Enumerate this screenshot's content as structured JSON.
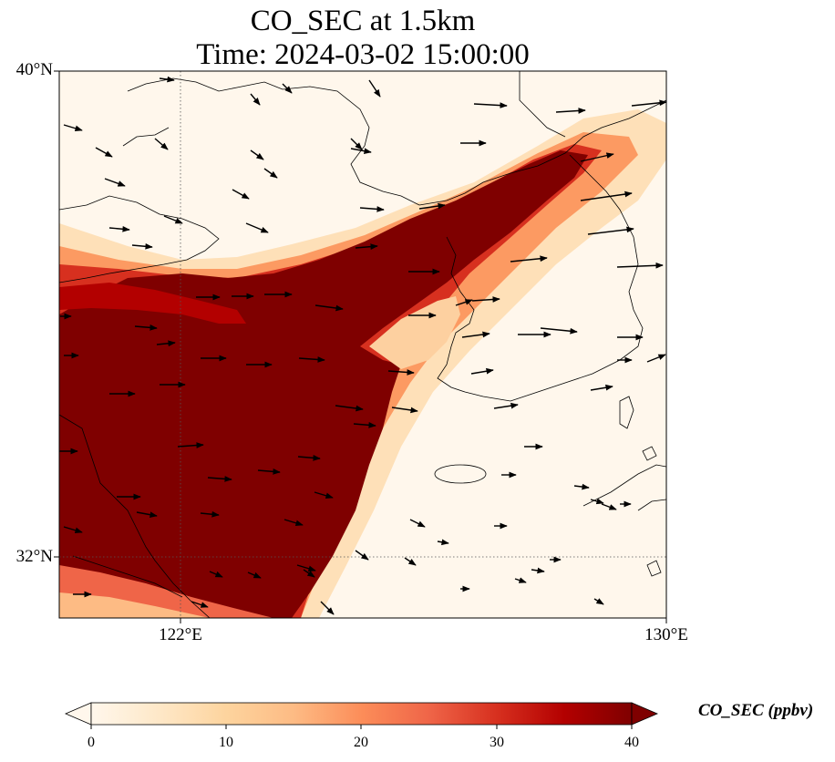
{
  "title_line1": "CO_SEC at 1.5km",
  "title_line2": "Time: 2024-03-02 15:00:00",
  "lat_labels": [
    "40°N",
    "32°N"
  ],
  "lon_labels": [
    "122°E",
    "130°E"
  ],
  "colorbar": {
    "label": "CO_SEC (ppbv)",
    "ticks": [
      "0",
      "10",
      "20",
      "30",
      "40"
    ],
    "min": 0,
    "max": 40,
    "extend": "both",
    "colormap": [
      "#fff7ec",
      "#fee8c8",
      "#fdd49e",
      "#fdbb84",
      "#fc8d59",
      "#ef6548",
      "#d7301f",
      "#b30000",
      "#7f0000"
    ]
  },
  "map": {
    "lon_range": [
      120,
      130
    ],
    "lat_range": [
      31,
      40
    ],
    "gridlines": "dotted",
    "coastline_color": "#000000"
  }
}
